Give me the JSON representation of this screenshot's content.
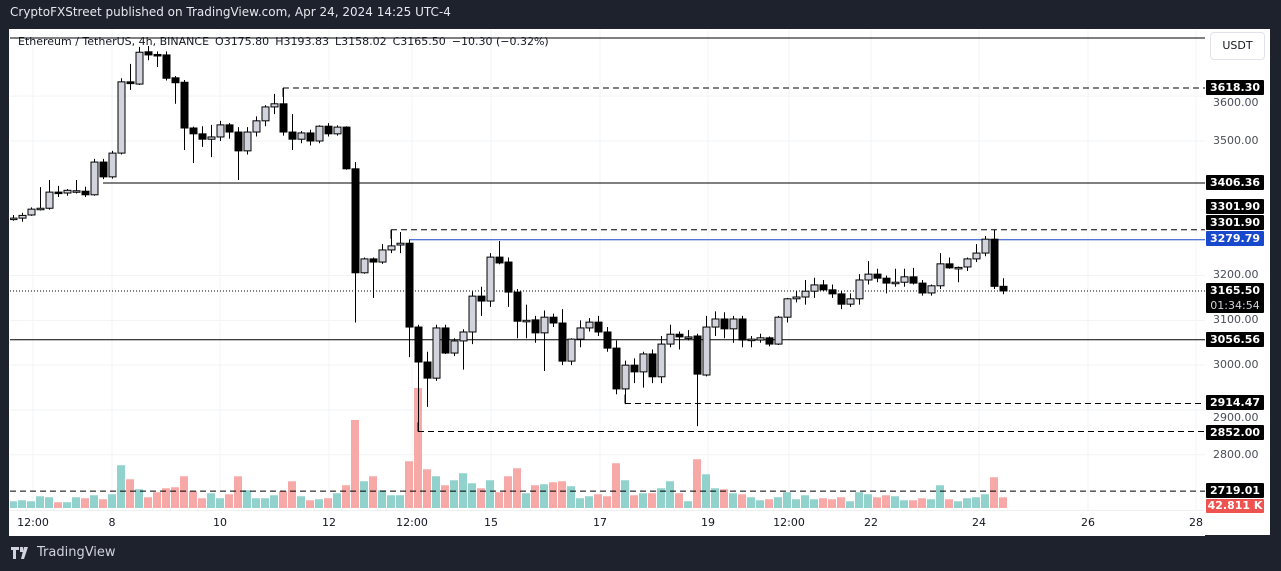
{
  "header": {
    "publish_text": "CryptoFXStreet published on TradingView.com, Apr 24, 2024 14:25 UTC-4"
  },
  "legend": {
    "symbol": "Ethereum / TetherUS, 4h, BINANCE",
    "open": "O3175.80",
    "high": "H3193.83",
    "low": "L3158.02",
    "close": "C3165.50",
    "change": "−10.30 (−0.32%)"
  },
  "price_axis": {
    "currency_button": "USDT",
    "ticks": [
      "3600.00",
      "3500.00",
      "3200.00",
      "3100.00",
      "3000.00",
      "2900.00",
      "2800.00"
    ],
    "tick_values": [
      3600,
      3500,
      3200,
      3100,
      3000,
      2900,
      2800
    ]
  },
  "levels": [
    {
      "label": "3618.30",
      "price": 3618.3,
      "style": "dashed"
    },
    {
      "label": "3406.36",
      "price": 3406.36,
      "style": "solid"
    },
    {
      "label": "3301.90",
      "price": 3301.9,
      "style": "dashed"
    },
    {
      "label": "3301.90",
      "price": 3301.9,
      "style": "none"
    },
    {
      "label": "3279.79",
      "price": 3279.79,
      "style": "solid",
      "color": "#1848cc"
    },
    {
      "label": "3165.50",
      "price": 3165.5,
      "style": "dotted",
      "countdown": "01:34:54"
    },
    {
      "label": "3056.56",
      "price": 3056.56,
      "style": "solid"
    },
    {
      "label": "2914.47",
      "price": 2914.47,
      "style": "dashed"
    },
    {
      "label": "2852.00",
      "price": 2852.0,
      "style": "dashed"
    },
    {
      "label": "2719.01",
      "price": 2719.01,
      "style": "dashed"
    }
  ],
  "volume_label": {
    "text": "42.811 K",
    "color": "#ef5350"
  },
  "time_axis": [
    "12:00",
    "8",
    "10",
    "12",
    "12:00",
    "15",
    "17",
    "19",
    "12:00",
    "22",
    "24",
    "26",
    "28"
  ],
  "colors": {
    "up_body": "#d1d4dc",
    "down_body": "#000000",
    "vol_up": "#92d2cc",
    "vol_down": "#f7a9a7",
    "price_line": "#1848cc"
  },
  "chart_data": {
    "type": "candlestick",
    "interval": "4h",
    "ohlc": [
      [
        3326,
        3335,
        3322,
        3328
      ],
      [
        3328,
        3340,
        3320,
        3334
      ],
      [
        3335,
        3352,
        3333,
        3348
      ],
      [
        3349,
        3397,
        3345,
        3350
      ],
      [
        3350,
        3413,
        3347,
        3386
      ],
      [
        3386,
        3400,
        3375,
        3383
      ],
      [
        3384,
        3393,
        3378,
        3390
      ],
      [
        3388,
        3413,
        3383,
        3389
      ],
      [
        3388,
        3398,
        3375,
        3380
      ],
      [
        3380,
        3460,
        3378,
        3453
      ],
      [
        3453,
        3460,
        3415,
        3420
      ],
      [
        3420,
        3478,
        3416,
        3473
      ],
      [
        3473,
        3640,
        3470,
        3632
      ],
      [
        3632,
        3672,
        3614,
        3628
      ],
      [
        3627,
        3710,
        3625,
        3698
      ],
      [
        3699,
        3712,
        3680,
        3692
      ],
      [
        3693,
        3700,
        3665,
        3690
      ],
      [
        3692,
        3700,
        3635,
        3640
      ],
      [
        3641,
        3645,
        3583,
        3630
      ],
      [
        3631,
        3636,
        3480,
        3529
      ],
      [
        3529,
        3532,
        3451,
        3516
      ],
      [
        3516,
        3533,
        3487,
        3504
      ],
      [
        3504,
        3536,
        3464,
        3509
      ],
      [
        3509,
        3545,
        3500,
        3536
      ],
      [
        3536,
        3540,
        3505,
        3520
      ],
      [
        3520,
        3531,
        3413,
        3478
      ],
      [
        3478,
        3531,
        3470,
        3520
      ],
      [
        3520,
        3555,
        3510,
        3545
      ],
      [
        3545,
        3580,
        3533,
        3576
      ],
      [
        3576,
        3605,
        3560,
        3583
      ],
      [
        3583,
        3618,
        3512,
        3520
      ],
      [
        3520,
        3560,
        3480,
        3504
      ],
      [
        3504,
        3522,
        3495,
        3518
      ],
      [
        3518,
        3525,
        3490,
        3500
      ],
      [
        3500,
        3535,
        3495,
        3533
      ],
      [
        3533,
        3540,
        3510,
        3516
      ],
      [
        3516,
        3535,
        3512,
        3531
      ],
      [
        3531,
        3533,
        3436,
        3438
      ],
      [
        3438,
        3453,
        3095,
        3206
      ],
      [
        3206,
        3240,
        3204,
        3237
      ],
      [
        3237,
        3240,
        3150,
        3230
      ],
      [
        3230,
        3270,
        3226,
        3257
      ],
      [
        3257,
        3301,
        3250,
        3266
      ],
      [
        3268,
        3297,
        3250,
        3272
      ],
      [
        3272,
        3280,
        3018,
        3085
      ],
      [
        3085,
        3090,
        2852,
        3007
      ],
      [
        3007,
        3030,
        2907,
        2971
      ],
      [
        2971,
        3090,
        2965,
        3083
      ],
      [
        3083,
        3090,
        3025,
        3027
      ],
      [
        3027,
        3060,
        3020,
        3054
      ],
      [
        3054,
        3080,
        2990,
        3074
      ],
      [
        3074,
        3164,
        3047,
        3154
      ],
      [
        3154,
        3175,
        3110,
        3143
      ],
      [
        3143,
        3250,
        3130,
        3241
      ],
      [
        3241,
        3277,
        3225,
        3228
      ],
      [
        3230,
        3240,
        3130,
        3163
      ],
      [
        3163,
        3170,
        3060,
        3098
      ],
      [
        3098,
        3135,
        3060,
        3100
      ],
      [
        3101,
        3110,
        3050,
        3072
      ],
      [
        3072,
        3122,
        2987,
        3107
      ],
      [
        3107,
        3115,
        3085,
        3094
      ],
      [
        3094,
        3125,
        3000,
        3009
      ],
      [
        3009,
        3060,
        3000,
        3058
      ],
      [
        3058,
        3100,
        3040,
        3083
      ],
      [
        3083,
        3105,
        3075,
        3096
      ],
      [
        3096,
        3110,
        3065,
        3074
      ],
      [
        3074,
        3085,
        3030,
        3038
      ],
      [
        3038,
        3055,
        2935,
        2947
      ],
      [
        2947,
        3010,
        2913,
        3000
      ],
      [
        3000,
        3015,
        2960,
        2985
      ],
      [
        2985,
        3030,
        2950,
        3025
      ],
      [
        3025,
        3035,
        2960,
        2974
      ],
      [
        2974,
        3065,
        2960,
        3047
      ],
      [
        3047,
        3090,
        3040,
        3069
      ],
      [
        3069,
        3075,
        3035,
        3063
      ],
      [
        3063,
        3078,
        3055,
        3063
      ],
      [
        3065,
        3070,
        2864,
        2980
      ],
      [
        2978,
        3110,
        2975,
        3085
      ],
      [
        3085,
        3120,
        3065,
        3103
      ],
      [
        3103,
        3118,
        3060,
        3081
      ],
      [
        3081,
        3110,
        3050,
        3103
      ],
      [
        3103,
        3110,
        3040,
        3056
      ],
      [
        3058,
        3065,
        3040,
        3058
      ],
      [
        3056,
        3070,
        3050,
        3061
      ],
      [
        3061,
        3064,
        3042,
        3047
      ],
      [
        3047,
        3110,
        3045,
        3107
      ],
      [
        3107,
        3150,
        3095,
        3148
      ],
      [
        3148,
        3165,
        3140,
        3152
      ],
      [
        3152,
        3190,
        3135,
        3165
      ],
      [
        3165,
        3195,
        3150,
        3179
      ],
      [
        3179,
        3190,
        3165,
        3168
      ],
      [
        3168,
        3180,
        3150,
        3159
      ],
      [
        3159,
        3165,
        3125,
        3136
      ],
      [
        3136,
        3160,
        3130,
        3148
      ],
      [
        3148,
        3203,
        3135,
        3190
      ],
      [
        3190,
        3232,
        3180,
        3203
      ],
      [
        3203,
        3215,
        3185,
        3194
      ],
      [
        3194,
        3200,
        3160,
        3183
      ],
      [
        3183,
        3215,
        3175,
        3185
      ],
      [
        3185,
        3215,
        3175,
        3197
      ],
      [
        3197,
        3217,
        3180,
        3183
      ],
      [
        3183,
        3190,
        3155,
        3161
      ],
      [
        3161,
        3180,
        3155,
        3177
      ],
      [
        3177,
        3250,
        3170,
        3226
      ],
      [
        3226,
        3240,
        3215,
        3217
      ],
      [
        3217,
        3220,
        3185,
        3218
      ],
      [
        3219,
        3240,
        3210,
        3237
      ],
      [
        3237,
        3270,
        3230,
        3250
      ],
      [
        3250,
        3288,
        3243,
        3281
      ],
      [
        3281,
        3301.9,
        3170,
        3175.8
      ],
      [
        3175.8,
        3193.83,
        3158.02,
        3165.5
      ]
    ],
    "volume_k": [
      27,
      31,
      27,
      47,
      43,
      23,
      23,
      43,
      39,
      51,
      35,
      55,
      171,
      115,
      75,
      43,
      63,
      79,
      83,
      127,
      67,
      39,
      59,
      39,
      55,
      127,
      71,
      39,
      39,
      51,
      67,
      107,
      47,
      31,
      35,
      39,
      59,
      91,
      352,
      107,
      127,
      71,
      51,
      51,
      187,
      480,
      155,
      127,
      91,
      111,
      139,
      99,
      79,
      111,
      63,
      127,
      159,
      59,
      91,
      95,
      103,
      107,
      87,
      39,
      47,
      55,
      47,
      179,
      111,
      51,
      59,
      59,
      79,
      107,
      59,
      27,
      195,
      135,
      79,
      75,
      59,
      55,
      43,
      31,
      35,
      43,
      63,
      35,
      51,
      35,
      39,
      35,
      43,
      27,
      63,
      55,
      43,
      51,
      47,
      31,
      31,
      39,
      35,
      91,
      35,
      27,
      39,
      43,
      55,
      123,
      42.811
    ],
    "ylim": [
      2700,
      3740
    ]
  },
  "footer": {
    "logo_text": "TradingView"
  }
}
